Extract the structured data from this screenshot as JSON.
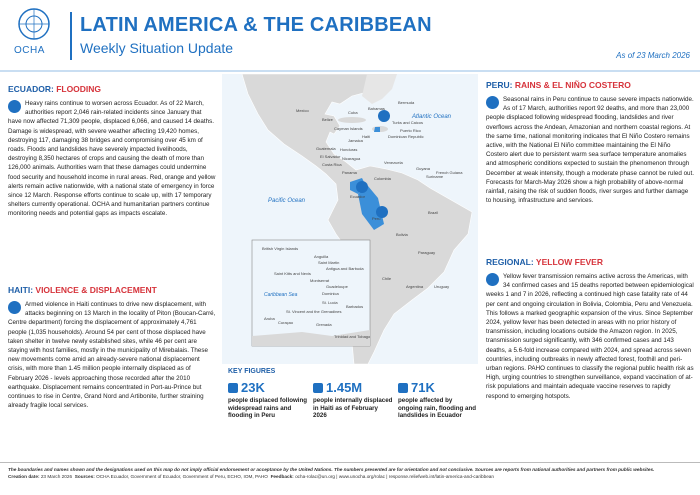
{
  "header": {
    "logo_text": "OCHA",
    "title": "LATIN AMERICA & THE CARIBBEAN",
    "subtitle": "Weekly Situation Update",
    "date": "As of 23 March 2026"
  },
  "sections": [
    {
      "label": "ECUADOR:",
      "topic": "FLOODING",
      "text": "Heavy rains continue to worsen across Ecuador. As of 22 March, authorities report 2,046 rain-related incidents since January that have now affected 71,309 people, displaced 6,066, and caused 14 deaths. Damage is widespread, with severe weather affecting 19,420 homes, destroying 117, damaging 38 bridges and compromising over 45 km of roads. Floods and landslides have severely impacted livelihoods, destroying 8,350 hectares of crops and causing the death of more than 126,000 animals. Authorities warn that these damages could undermine food security and household income in rural areas. Red, orange and yellow alerts remain active nationwide, with a national state of emergency in force since 12 March. Response efforts continue to scale up, with 17 temporary shelters currently operational. OCHA and humanitarian partners continue monitoring needs and potential gaps as impacts escalate."
    },
    {
      "label": "HAITI:",
      "topic": "VIOLENCE & DISPLACEMENT",
      "text": "Armed violence in Haiti continues to drive new displacement, with attacks beginning on 13 March in the locality of Piton (Boucan-Carré, Centre department) forcing the displacement of approximately 4,761 people (1,035 households). Around 54 per cent of those displaced have taken shelter in twelve newly established sites, while 46 per cent are staying with host families, mostly in the municipality of Mirebalais. These new movements come amid an already-severe national displacement crisis, with more than 1.45 million people internally displaced as of February 2026 - levels approaching those recorded after the 2010 earthquake. Displacement remains concentrated in Port-au-Prince but continues to rise in Centre, Grand Nord and Artibonite, further straining already fragile local services."
    },
    {
      "label": "PERU:",
      "topic": "RAINS & EL NIÑO COSTERO",
      "text": "Seasonal rains in Peru continue to cause severe impacts nationwide. As of 17 March, authorities report 92 deaths, and more than 23,000 people displaced following widespread flooding, landslides and river overflows across the Andean, Amazonian and northern coastal regions. At the same time, national monitoring indicates that El Niño Costero remains active, with the National El Niño committee maintaining the El Niño Costero alert due to persistent warm sea surface temperature anomalies and atmospheric conditions expected to sustain the phenomenon through December at weak intensity, though a moderate phase cannot be ruled out. Forecasts for March-May 2026 show a high probability of above-normal rainfall, raising the risk of sudden floods, river surges and further damage to housing, infrastructure and services."
    },
    {
      "label": "REGIONAL:",
      "topic": "YELLOW FEVER",
      "text": "Yellow fever transmission remains active across the Americas, with 34 confirmed cases and 15 deaths reported between epidemiological weeks 1 and 7 in 2026, reflecting a continued high case fatality rate of 44 per cent and ongoing circulation in Bolivia, Colombia, Peru and Venezuela. This follows a marked geographic expansion of the virus. Since September 2024, yellow fever has been detected in areas with no prior history of transmission, including locations outside the Amazon region. In 2025, transmission surged significantly, with 346 confirmed cases and 143 deaths, a 5.6-fold increase compared with 2024, and spread across seven countries, including outbreaks in newly affected forest, foothill and peri-urban regions. PAHO continues to classify the regional public health risk as High, urging countries to strengthen surveillance, expand vaccination of at-risk populations and maintain adequate vaccine reserves to rapidly respond to emerging hotspots."
    }
  ],
  "map": {
    "labels": [
      "Bermuda",
      "Atlantic Ocean",
      "Mexico",
      "Belize",
      "Cuba",
      "Bahamas",
      "Turks and Caicos",
      "Cayman Islands",
      "Haiti",
      "Dominican Republic",
      "Jamaica",
      "Puerto Rico",
      "Guatemala",
      "Honduras",
      "El Salvador",
      "Nicaragua",
      "Costa Rica",
      "Panama",
      "Venezuela",
      "Guyana",
      "Suriname",
      "French Guiana",
      "Colombia",
      "Ecuador",
      "Peru",
      "Brazil",
      "Bolivia",
      "Paraguay",
      "Chile",
      "Argentina",
      "Uruguay",
      "Pacific Ocean"
    ],
    "inset_labels": [
      "British Virgin Islands",
      "Anguilla",
      "Saint Martin",
      "Antigua and Barbuda",
      "Saint Kitts and Nevis",
      "Montserrat",
      "Guadeloupe",
      "Caribbean Sea",
      "Dominica",
      "St. Lucia",
      "Barbados",
      "St. Vincent and the Grenadines",
      "Aruba",
      "Curaçao",
      "Grenada",
      "Trinidad and Tobago"
    ]
  },
  "key_figures": {
    "title": "KEY FIGURES",
    "items": [
      {
        "value": "23K",
        "text": "people displaced following widespread rains and flooding in Peru"
      },
      {
        "value": "1.45M",
        "text": "people internally displaced in Haiti as of February 2026"
      },
      {
        "value": "71K",
        "text": "people affected by ongoing rain, flooding and landslides in Ecuador"
      }
    ]
  },
  "footer": {
    "disclaimer": "The boundaries and names shown and the designations used on this map do not imply official endorsement or acceptance by the United Nations. The numbers presented are for orientation and not conclusive. Sources are reports from national authorities and partners from public websites.",
    "creation_label": "Creation date:",
    "creation": "23 March 2026",
    "sources_label": "Sources:",
    "sources": "OCHA Ecuador, Government of Ecuador, Government of Peru, ECHO, IOM, PAHO",
    "feedback_label": "Feedback:",
    "feedback": "ocha-rolac@un.org | www.unocha.org/rolac | response.reliefweb.int/latin-america-and-caribbean"
  }
}
